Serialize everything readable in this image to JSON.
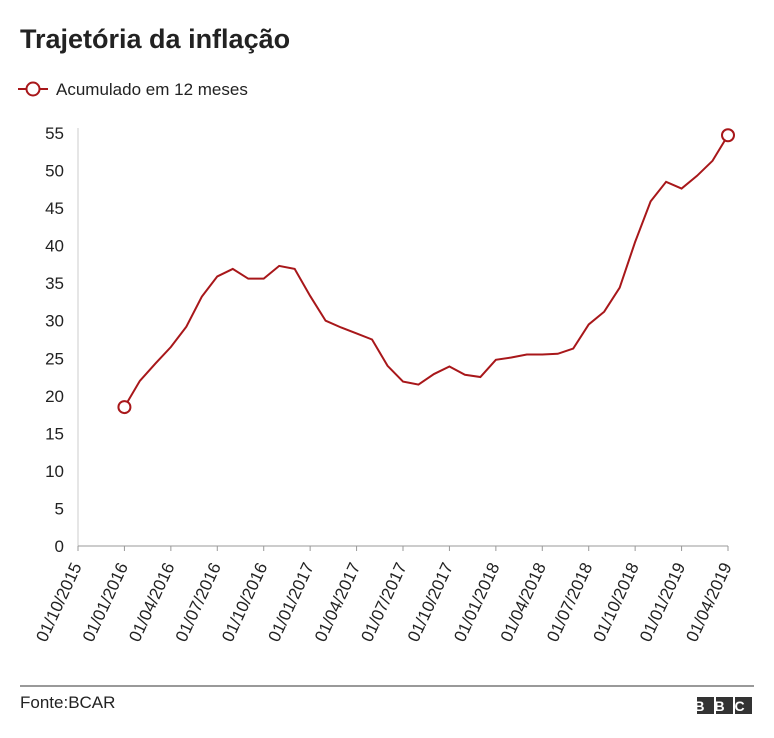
{
  "chart_data": {
    "type": "line",
    "title": "Trajetória da inflação",
    "source": "Fonte:BCAR",
    "logo": "BBC",
    "legend": "top-left",
    "x": [
      "01/01/2016",
      "01/02/2016",
      "01/03/2016",
      "01/04/2016",
      "01/05/2016",
      "01/06/2016",
      "01/07/2016",
      "01/08/2016",
      "01/09/2016",
      "01/10/2016",
      "01/11/2016",
      "01/12/2016",
      "01/01/2017",
      "01/02/2017",
      "01/03/2017",
      "01/04/2017",
      "01/05/2017",
      "01/06/2017",
      "01/07/2017",
      "01/08/2017",
      "01/09/2017",
      "01/10/2017",
      "01/11/2017",
      "01/12/2017",
      "01/01/2018",
      "01/02/2018",
      "01/03/2018",
      "01/04/2018",
      "01/05/2018",
      "01/06/2018",
      "01/07/2018",
      "01/08/2018",
      "01/09/2018",
      "01/10/2018",
      "01/11/2018",
      "01/12/2018",
      "01/01/2019",
      "01/02/2019",
      "01/03/2019",
      "01/04/2019"
    ],
    "series": [
      {
        "name": "Acumulado em 12 meses",
        "color": "#a8171a",
        "values": [
          18.5,
          22,
          24.3,
          26.5,
          29.2,
          33.2,
          35.9,
          36.9,
          35.6,
          35.6,
          37.3,
          36.9,
          33.3,
          30.0,
          29.1,
          28.3,
          27.5,
          24.0,
          21.9,
          21.5,
          22.9,
          23.9,
          22.8,
          22.5,
          24.8,
          25.1,
          25.5,
          25.5,
          25.6,
          26.3,
          29.5,
          31.2,
          34.4,
          40.5,
          45.9,
          48.5,
          47.6,
          49.3,
          51.3,
          54.7
        ]
      }
    ],
    "xlim": [
      "01/10/2015",
      "01/04/2019"
    ],
    "xticks": [
      "01/10/2015",
      "01/01/2016",
      "01/04/2016",
      "01/07/2016",
      "01/10/2016",
      "01/01/2017",
      "01/04/2017",
      "01/07/2017",
      "01/10/2017",
      "01/01/2018",
      "01/04/2018",
      "01/07/2018",
      "01/10/2018",
      "01/01/2019",
      "01/04/2019"
    ],
    "ylim": [
      0,
      55
    ],
    "yticks": [
      0,
      5,
      10,
      15,
      20,
      25,
      30,
      35,
      40,
      45,
      50,
      55
    ],
    "grid": false
  }
}
